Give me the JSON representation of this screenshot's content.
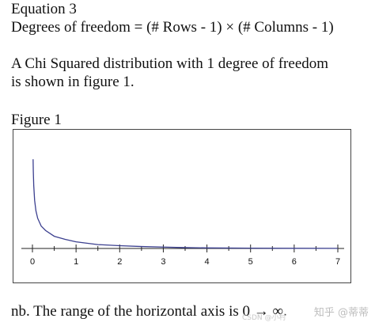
{
  "text": {
    "equation_heading": "Equation 3",
    "dof_formula": "Degrees of freedom = (# Rows - 1) × (# Columns - 1)",
    "description_line1": "A Chi Squared distribution with 1 degree of freedom",
    "description_line2": "is shown in figure 1.",
    "figure_label": "Figure 1",
    "note": "nb. The range of the horizontal axis is 0 → ∞."
  },
  "watermark": {
    "text": "知乎 @蒂蒂",
    "sub_text": "CSDN @小村"
  },
  "chart_data": {
    "type": "line",
    "title": "",
    "xlabel": "",
    "ylabel": "",
    "x_ticks": [
      0,
      1,
      2,
      3,
      4,
      5,
      6,
      7
    ],
    "xlim": [
      0,
      7
    ],
    "ylim": [
      0,
      4
    ],
    "grid": false,
    "series": [
      {
        "color": "#3b3f8f",
        "x": [
          0.015,
          0.02,
          0.03,
          0.05,
          0.08,
          0.12,
          0.2,
          0.3,
          0.5,
          0.75,
          1.0,
          1.5,
          2.0,
          2.5,
          3.0,
          3.5,
          4.0,
          5.0,
          6.0,
          7.0
        ],
        "y": [
          3.22,
          2.79,
          2.27,
          1.74,
          1.36,
          1.09,
          0.81,
          0.65,
          0.44,
          0.33,
          0.24,
          0.14,
          0.1,
          0.07,
          0.05,
          0.03,
          0.02,
          0.01,
          0.006,
          0.003
        ]
      }
    ],
    "axis_color": "#222222"
  }
}
